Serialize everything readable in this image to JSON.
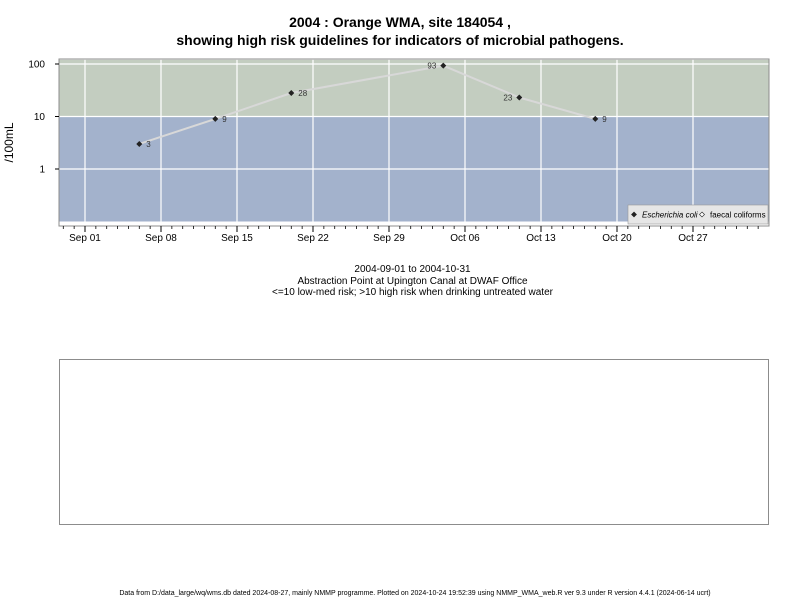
{
  "title_line1": "2004 : Orange WMA, site 184054 ,",
  "title_line2": "showing high risk guidelines for indicators of microbial pathogens.",
  "subtitle": {
    "date_range": "2004-09-01 to 2004-10-31",
    "location": "Abstraction Point at Upington Canal at DWAF Office",
    "risk_note": "<=10 low-med risk; >10 high risk when drinking untreated water"
  },
  "footer": "Data from D:/data_large/wq/wms.db dated 2024-08-27, mainly NMMP programme. Plotted on 2024-10-24 19:52:39 using NMMP_WMA_web.R ver 9.3 under R version 4.4.1 (2024-06-14 ucrt)",
  "chart_data": {
    "type": "line",
    "ylabel": "/100mL",
    "xlabel": "",
    "y_scale": "log10",
    "ylim": [
      0.1,
      120
    ],
    "x_range": [
      "2004-08-30",
      "2004-11-02"
    ],
    "y_ticks": [
      1,
      10,
      100
    ],
    "y_tick_labels": [
      "1",
      "10",
      "100"
    ],
    "x_ticks": [
      "2004-09-01",
      "2004-09-08",
      "2004-09-15",
      "2004-09-22",
      "2004-09-29",
      "2004-10-06",
      "2004-10-13",
      "2004-10-20",
      "2004-10-27"
    ],
    "x_tick_labels": [
      "Sep 01",
      "Sep 08",
      "Sep 15",
      "Sep 22",
      "Sep 29",
      "Oct 06",
      "Oct 13",
      "Oct 20",
      "Oct 27"
    ],
    "grid": true,
    "bands": [
      {
        "from": 0.1,
        "to": 10,
        "color": "#a3b2cc"
      },
      {
        "from": 10,
        "to": 120,
        "color": "#c3cdc0"
      }
    ],
    "series": [
      {
        "name": "Escherichia coli",
        "color": "#d8d8d8",
        "marker_color": "#222222",
        "x": [
          "2004-09-06",
          "2004-09-13",
          "2004-09-20",
          "2004-10-04",
          "2004-10-11",
          "2004-10-18"
        ],
        "values": [
          3,
          9,
          28,
          93,
          23,
          9
        ],
        "labels": [
          "3",
          "9",
          "28",
          "93",
          "23",
          "9"
        ]
      }
    ],
    "legend": [
      {
        "label": "Escherichia coli",
        "marker": "diamond-filled"
      },
      {
        "label": "faecal coliforms",
        "marker": "diamond-open"
      }
    ],
    "legend_position": "bottom-right"
  }
}
